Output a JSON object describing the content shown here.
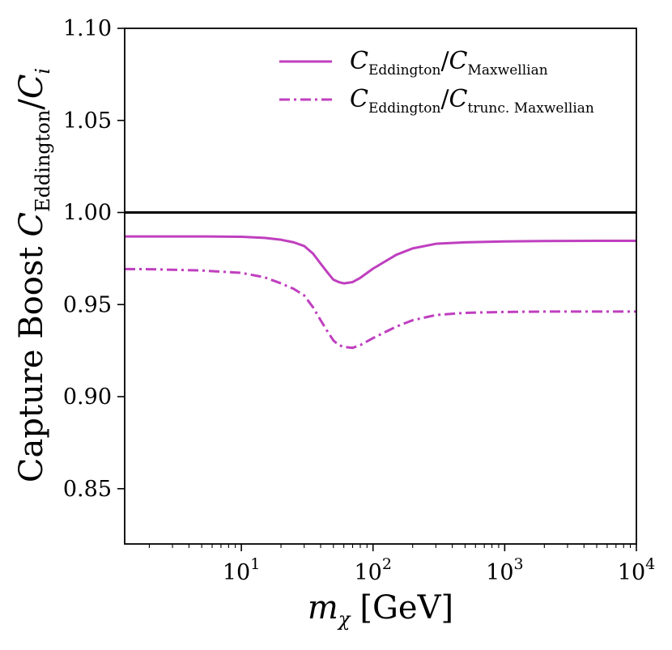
{
  "chart_data": {
    "type": "line",
    "xscale": "log",
    "xlim": [
      1.3,
      10000
    ],
    "ylim": [
      0.82,
      1.1
    ],
    "xlabel": {
      "var": "m",
      "sub": "χ",
      "unit": "[GeV]"
    },
    "ylabel": {
      "prefix": "Capture Boost",
      "num": "C",
      "num_sub": "Eddington",
      "den": "C",
      "den_sub": "i"
    },
    "yticks": [
      {
        "value": 0.85,
        "label": "0.85"
      },
      {
        "value": 0.9,
        "label": "0.90"
      },
      {
        "value": 0.95,
        "label": "0.95"
      },
      {
        "value": 1.0,
        "label": "1.00"
      },
      {
        "value": 1.05,
        "label": "1.05"
      },
      {
        "value": 1.1,
        "label": "1.10"
      }
    ],
    "xticks": [
      {
        "value": 10,
        "base": "10",
        "exp": "1"
      },
      {
        "value": 100,
        "base": "10",
        "exp": "2"
      },
      {
        "value": 1000,
        "base": "10",
        "exp": "3"
      },
      {
        "value": 10000,
        "base": "10",
        "exp": "4"
      }
    ],
    "reference_line": {
      "y": 1.0,
      "color": "#000000"
    },
    "series": [
      {
        "name": "C_Eddington/C_Maxwellian",
        "legend": {
          "num": "C",
          "num_sub": "Eddington",
          "den": "C",
          "den_sub": "Maxwellian"
        },
        "color": "#bf3fbf",
        "dash": "solid",
        "x": [
          1.3,
          2,
          5,
          10,
          15,
          20,
          25,
          30,
          35,
          40,
          45,
          50,
          55,
          60,
          70,
          80,
          100,
          150,
          200,
          300,
          500,
          1000,
          2000,
          5000,
          10000
        ],
        "y": [
          0.987,
          0.987,
          0.987,
          0.9868,
          0.9862,
          0.9852,
          0.9838,
          0.9818,
          0.9777,
          0.9722,
          0.9675,
          0.9635,
          0.9622,
          0.9615,
          0.9622,
          0.9645,
          0.9695,
          0.977,
          0.9805,
          0.983,
          0.9838,
          0.9843,
          0.9845,
          0.9846,
          0.9846
        ]
      },
      {
        "name": "C_Eddington/C_trunc. Maxwellian",
        "legend": {
          "num": "C",
          "num_sub": "Eddington",
          "den": "C",
          "den_sub": "trunc. Maxwellian"
        },
        "color": "#bf3fbf",
        "dash": "dashdot",
        "x": [
          1.3,
          2,
          5,
          10,
          15,
          20,
          25,
          30,
          35,
          40,
          45,
          50,
          55,
          60,
          70,
          80,
          100,
          150,
          200,
          300,
          500,
          1000,
          2000,
          5000,
          10000
        ],
        "y": [
          0.9693,
          0.9692,
          0.9685,
          0.9672,
          0.9648,
          0.9615,
          0.9585,
          0.955,
          0.9485,
          0.9415,
          0.9355,
          0.9305,
          0.928,
          0.927,
          0.9265,
          0.928,
          0.9318,
          0.938,
          0.9415,
          0.9443,
          0.9455,
          0.946,
          0.9462,
          0.9462,
          0.9462
        ]
      }
    ]
  }
}
